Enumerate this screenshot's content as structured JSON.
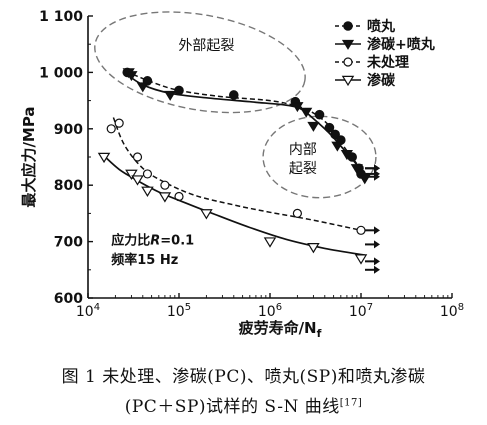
{
  "chart_data": {
    "type": "scatter",
    "xlabel": "疲劳寿命/N",
    "xlabel_sub": "f",
    "ylabel": "最大应力/MPa",
    "xscale": "log",
    "xlim": [
      10000,
      100000000
    ],
    "ylim": [
      600,
      1100
    ],
    "x_ticks": [
      {
        "value": 10000,
        "base": "10",
        "exp": "4"
      },
      {
        "value": 100000,
        "base": "10",
        "exp": "5"
      },
      {
        "value": 1000000,
        "base": "10",
        "exp": "6"
      },
      {
        "value": 10000000,
        "base": "10",
        "exp": "7"
      },
      {
        "value": 100000000,
        "base": "10",
        "exp": "8"
      }
    ],
    "y_ticks": [
      {
        "value": 600,
        "label": "600"
      },
      {
        "value": 700,
        "label": "700"
      },
      {
        "value": 800,
        "label": "800"
      },
      {
        "value": 900,
        "label": "900"
      },
      {
        "value": 1000,
        "label": "1 000"
      },
      {
        "value": 1100,
        "label": "1 100"
      }
    ],
    "series": [
      {
        "name": "喷丸",
        "marker": "filled-circle",
        "line": "dashed",
        "points": [
          [
            27000,
            1000
          ],
          [
            45000,
            985
          ],
          [
            100000,
            968
          ],
          [
            400000,
            960
          ],
          [
            1900000,
            948
          ],
          [
            3500000,
            925
          ],
          [
            4500000,
            902
          ],
          [
            5200000,
            890
          ],
          [
            6000000,
            880
          ],
          [
            8000000,
            850
          ],
          [
            9500000,
            830
          ],
          [
            10000000,
            820
          ]
        ],
        "runouts": [
          [
            10000000,
            830
          ],
          [
            10000000,
            820
          ]
        ],
        "curve": [
          [
            26000,
            1002
          ],
          [
            50000,
            983
          ],
          [
            100000,
            968
          ],
          [
            300000,
            957
          ],
          [
            1000000,
            950
          ],
          [
            2000000,
            940
          ],
          [
            3000000,
            928
          ],
          [
            4500000,
            905
          ],
          [
            6500000,
            868
          ],
          [
            9000000,
            838
          ],
          [
            11000000,
            818
          ]
        ]
      },
      {
        "name": "渗碳+喷丸",
        "marker": "filled-triangle-down",
        "line": "solid",
        "points": [
          [
            28000,
            1000
          ],
          [
            30000,
            995
          ],
          [
            40000,
            975
          ],
          [
            80000,
            960
          ],
          [
            2000000,
            940
          ],
          [
            2500000,
            930
          ],
          [
            3000000,
            905
          ],
          [
            5500000,
            870
          ],
          [
            7000000,
            855
          ],
          [
            9000000,
            830
          ],
          [
            11000000,
            812
          ]
        ],
        "runouts": [
          [
            10000000,
            830
          ],
          [
            10000000,
            815
          ]
        ],
        "curve": [
          [
            25000,
            1000
          ],
          [
            40000,
            978
          ],
          [
            80000,
            963
          ],
          [
            200000,
            955
          ],
          [
            600000,
            948
          ],
          [
            1500000,
            942
          ],
          [
            2200000,
            935
          ],
          [
            3000000,
            918
          ],
          [
            4500000,
            892
          ],
          [
            6500000,
            863
          ],
          [
            9000000,
            836
          ],
          [
            11000000,
            812
          ]
        ]
      },
      {
        "name": "未处理",
        "marker": "open-circle",
        "line": "dashed",
        "points": [
          [
            18000,
            900
          ],
          [
            22000,
            910
          ],
          [
            35000,
            850
          ],
          [
            45000,
            820
          ],
          [
            70000,
            800
          ],
          [
            100000,
            780
          ],
          [
            2000000,
            750
          ],
          [
            10000000,
            720
          ]
        ],
        "runouts": [
          [
            10000000,
            720
          ],
          [
            10000000,
            695
          ]
        ],
        "curve": [
          [
            19000,
            920
          ],
          [
            25000,
            872
          ],
          [
            40000,
            830
          ],
          [
            70000,
            805
          ],
          [
            150000,
            782
          ],
          [
            400000,
            765
          ],
          [
            1000000,
            752
          ],
          [
            3000000,
            738
          ],
          [
            10000000,
            720
          ]
        ]
      },
      {
        "name": "渗碳",
        "marker": "open-triangle-down",
        "line": "solid",
        "points": [
          [
            15000,
            850
          ],
          [
            30000,
            820
          ],
          [
            35000,
            810
          ],
          [
            45000,
            790
          ],
          [
            70000,
            780
          ],
          [
            200000,
            750
          ],
          [
            1000000,
            700
          ],
          [
            3000000,
            690
          ],
          [
            10000000,
            670
          ]
        ],
        "runouts": [
          [
            10000000,
            665
          ],
          [
            10000000,
            650
          ]
        ],
        "curve": [
          [
            15000,
            852
          ],
          [
            22000,
            828
          ],
          [
            35000,
            808
          ],
          [
            60000,
            788
          ],
          [
            120000,
            768
          ],
          [
            250000,
            748
          ],
          [
            600000,
            725
          ],
          [
            1500000,
            704
          ],
          [
            4000000,
            688
          ],
          [
            11000000,
            676
          ]
        ]
      }
    ],
    "annotations": [
      {
        "text": "外部起裂",
        "x": 200000,
        "y": 1040
      },
      {
        "text": "内部",
        "x": 2300000,
        "y": 855
      },
      {
        "text": "起裂",
        "x": 2300000,
        "y": 822
      },
      {
        "text": "应力比",
        "text_italic": "R",
        "text_suffix": "=0.1",
        "x": 18000,
        "y": 695
      },
      {
        "text": "频率15 Hz",
        "x": 18000,
        "y": 660
      }
    ],
    "ellipses": [
      {
        "name": "外部起裂",
        "cx": 170000,
        "cy": 1018,
        "rx_decades": 1.17,
        "ry": 70,
        "rotate": 10
      },
      {
        "name": "内部起裂",
        "cx": 3500000,
        "cy": 850,
        "rx_decades": 0.62,
        "ry": 58,
        "rotate": 0
      }
    ],
    "legend": {
      "position": "top-right"
    }
  },
  "caption": {
    "line1": "图 1   未处理、渗碳(PC)、喷丸(SP)和喷丸渗碳",
    "line2": "(PC＋SP)试样的 S-N 曲线",
    "ref": "[17]"
  }
}
